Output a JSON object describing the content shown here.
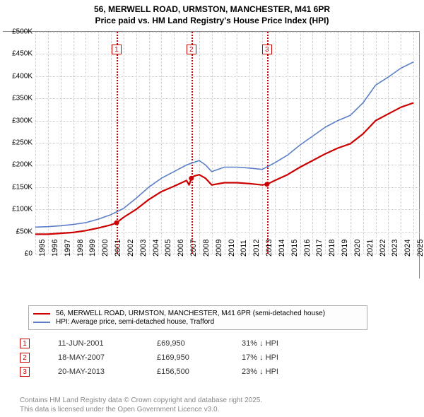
{
  "title": {
    "line1": "56, MERWELL ROAD, URMSTON, MANCHESTER, M41 6PR",
    "line2": "Price paid vs. HM Land Registry's House Price Index (HPI)"
  },
  "chart": {
    "type": "line",
    "background_color": "#ffffff",
    "grid_color": "#cccccc",
    "xlim": [
      1995,
      2025.5
    ],
    "ylim": [
      0,
      500000
    ],
    "ytick_step": 50000,
    "yticks": [
      {
        "v": 0,
        "label": "£0"
      },
      {
        "v": 50000,
        "label": "£50K"
      },
      {
        "v": 100000,
        "label": "£100K"
      },
      {
        "v": 150000,
        "label": "£150K"
      },
      {
        "v": 200000,
        "label": "£200K"
      },
      {
        "v": 250000,
        "label": "£250K"
      },
      {
        "v": 300000,
        "label": "£300K"
      },
      {
        "v": 350000,
        "label": "£350K"
      },
      {
        "v": 400000,
        "label": "£400K"
      },
      {
        "v": 450000,
        "label": "£450K"
      },
      {
        "v": 500000,
        "label": "£500K"
      }
    ],
    "xticks": [
      1995,
      1996,
      1997,
      1998,
      1999,
      2000,
      2001,
      2002,
      2003,
      2004,
      2005,
      2006,
      2007,
      2008,
      2009,
      2010,
      2011,
      2012,
      2013,
      2014,
      2015,
      2016,
      2017,
      2018,
      2019,
      2020,
      2021,
      2022,
      2023,
      2024,
      2025
    ],
    "series": [
      {
        "name": "property",
        "color": "#cc0000",
        "width": 2.2,
        "label": "56, MERWELL ROAD, URMSTON, MANCHESTER, M41 6PR (semi-detached house)",
        "points": [
          [
            1995,
            44000
          ],
          [
            1996,
            44000
          ],
          [
            1997,
            46000
          ],
          [
            1998,
            48000
          ],
          [
            1999,
            52000
          ],
          [
            2000,
            58000
          ],
          [
            2001,
            65000
          ],
          [
            2001.45,
            69950
          ],
          [
            2002,
            82000
          ],
          [
            2003,
            100000
          ],
          [
            2004,
            122000
          ],
          [
            2005,
            140000
          ],
          [
            2006,
            152000
          ],
          [
            2007,
            165000
          ],
          [
            2007.2,
            155000
          ],
          [
            2007.38,
            169950
          ],
          [
            2007.6,
            175000
          ],
          [
            2008,
            178000
          ],
          [
            2008.5,
            170000
          ],
          [
            2009,
            155000
          ],
          [
            2010,
            160000
          ],
          [
            2011,
            160000
          ],
          [
            2012,
            158000
          ],
          [
            2013,
            155000
          ],
          [
            2013.38,
            156500
          ],
          [
            2014,
            165000
          ],
          [
            2015,
            178000
          ],
          [
            2016,
            195000
          ],
          [
            2017,
            210000
          ],
          [
            2018,
            225000
          ],
          [
            2019,
            238000
          ],
          [
            2020,
            248000
          ],
          [
            2021,
            270000
          ],
          [
            2022,
            300000
          ],
          [
            2023,
            315000
          ],
          [
            2024,
            330000
          ],
          [
            2025,
            340000
          ]
        ]
      },
      {
        "name": "hpi",
        "color": "#5b7fc7",
        "width": 1.6,
        "label": "HPI: Average price, semi-detached house, Trafford",
        "points": [
          [
            1995,
            60000
          ],
          [
            1996,
            61000
          ],
          [
            1997,
            63000
          ],
          [
            1998,
            66000
          ],
          [
            1999,
            70000
          ],
          [
            2000,
            78000
          ],
          [
            2001,
            88000
          ],
          [
            2002,
            102000
          ],
          [
            2003,
            125000
          ],
          [
            2004,
            150000
          ],
          [
            2005,
            170000
          ],
          [
            2006,
            185000
          ],
          [
            2007,
            200000
          ],
          [
            2008,
            210000
          ],
          [
            2008.5,
            200000
          ],
          [
            2009,
            185000
          ],
          [
            2010,
            195000
          ],
          [
            2011,
            195000
          ],
          [
            2012,
            193000
          ],
          [
            2013,
            190000
          ],
          [
            2014,
            205000
          ],
          [
            2015,
            222000
          ],
          [
            2016,
            245000
          ],
          [
            2017,
            265000
          ],
          [
            2018,
            285000
          ],
          [
            2019,
            300000
          ],
          [
            2020,
            312000
          ],
          [
            2021,
            340000
          ],
          [
            2022,
            380000
          ],
          [
            2023,
            398000
          ],
          [
            2024,
            418000
          ],
          [
            2025,
            432000
          ]
        ]
      }
    ],
    "sale_markers": [
      {
        "n": "1",
        "x": 2001.45,
        "color": "#cc0000",
        "date": "11-JUN-2001",
        "price": "£69,950",
        "delta": "31% ↓ HPI"
      },
      {
        "n": "2",
        "x": 2007.38,
        "color": "#cc0000",
        "date": "18-MAY-2007",
        "price": "£169,950",
        "delta": "17% ↓ HPI"
      },
      {
        "n": "3",
        "x": 2013.38,
        "color": "#cc0000",
        "date": "20-MAY-2013",
        "price": "£156,500",
        "delta": "23% ↓ HPI"
      }
    ],
    "sale_points": [
      {
        "x": 2001.45,
        "y": 69950,
        "color": "#cc0000"
      },
      {
        "x": 2007.38,
        "y": 169950,
        "color": "#cc0000"
      },
      {
        "x": 2013.38,
        "y": 156500,
        "color": "#cc0000"
      }
    ],
    "label_fontsize": 10
  },
  "footer": {
    "line1": "Contains HM Land Registry data © Crown copyright and database right 2025.",
    "line2": "This data is licensed under the Open Government Licence v3.0."
  }
}
